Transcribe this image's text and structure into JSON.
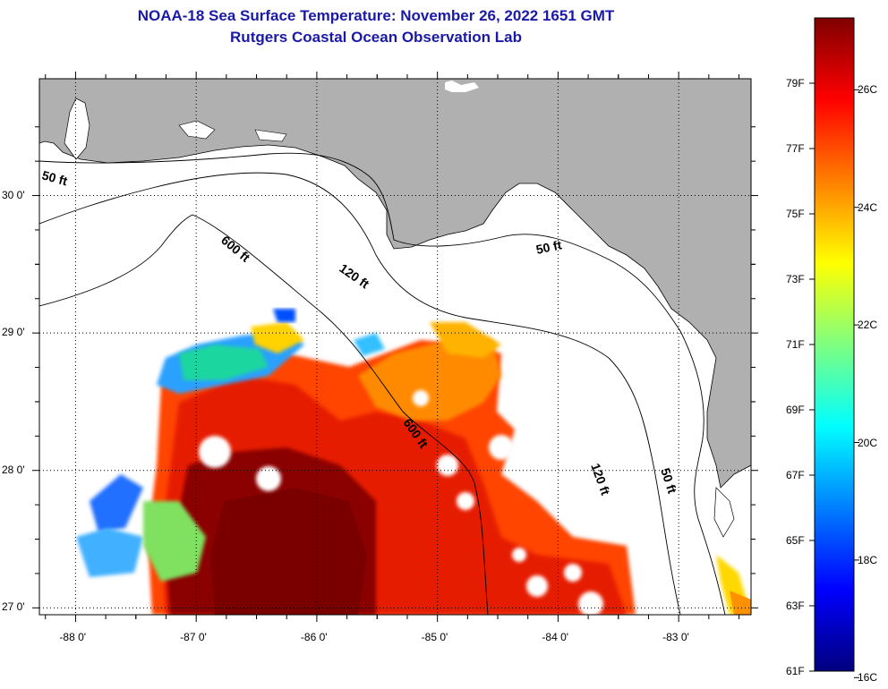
{
  "title": "NOAA-18 Sea Surface Temperature:  November 26, 2022 1651 GMT",
  "subtitle": "Rutgers Coastal Ocean Observation Lab",
  "map": {
    "lon_range": [
      -88.3,
      -82.4
    ],
    "lat_range": [
      26.95,
      30.85
    ],
    "lon_ticks": [
      "-88 0'",
      "-87 0'",
      "-86 0'",
      "-85 0'",
      "-84 0'",
      "-83 0'"
    ],
    "lat_ticks": [
      "30 0'",
      "29 0'",
      "28 0'",
      "27 0'"
    ],
    "grid": "dotted",
    "colors": {
      "land": "#b0b0b0",
      "no_data": "#ffffff",
      "contour": "#000000"
    },
    "contour_labels": [
      {
        "text": "50 ft",
        "region": "west"
      },
      {
        "text": "50 ft",
        "region": "big-bend"
      },
      {
        "text": "50 ft",
        "region": "southeast"
      },
      {
        "text": "120 ft",
        "region": "north"
      },
      {
        "text": "120 ft",
        "region": "east"
      },
      {
        "text": "600 ft",
        "region": "northwest"
      },
      {
        "text": "600 ft",
        "region": "central"
      }
    ]
  },
  "colorbar": {
    "range_f": [
      61,
      81
    ],
    "stops": [
      "#00007f",
      "#0000ff",
      "#007fff",
      "#00ffff",
      "#7fff7f",
      "#ffff00",
      "#ff7f00",
      "#ff0000",
      "#7f0000"
    ],
    "fahrenheit_labels": [
      "79F",
      "77F",
      "75F",
      "73F",
      "71F",
      "69F",
      "67F",
      "65F",
      "63F",
      "61F"
    ],
    "celsius_labels": [
      "26C",
      "24C",
      "22C",
      "20C",
      "18C",
      "16C"
    ]
  }
}
